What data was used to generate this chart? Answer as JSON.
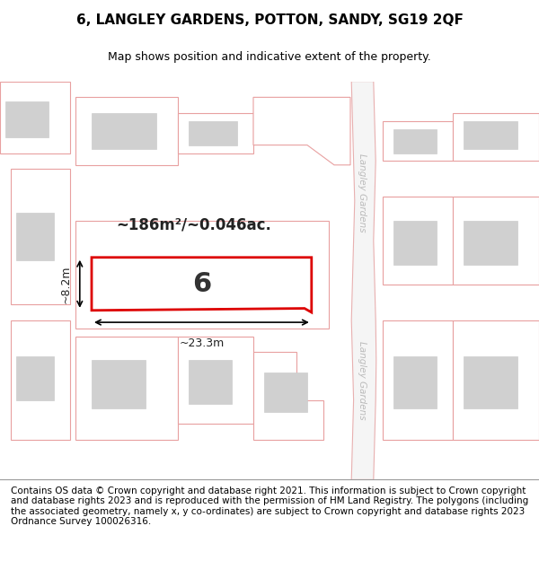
{
  "title": "6, LANGLEY GARDENS, POTTON, SANDY, SG19 2QF",
  "subtitle": "Map shows position and indicative extent of the property.",
  "footer": "Contains OS data © Crown copyright and database right 2021. This information is subject to Crown copyright and database rights 2023 and is reproduced with the permission of HM Land Registry. The polygons (including the associated geometry, namely x, y co-ordinates) are subject to Crown copyright and database rights 2023 Ordnance Survey 100026316.",
  "map_bg": "#f5f5f5",
  "plot_fill": "#ffffff",
  "plot_border": "#e8a0a0",
  "building_fill": "#d0d0d0",
  "building_border": "#cccccc",
  "highlight_border": "#dd0000",
  "highlight_fill": "#ffffff",
  "highlight_label": "6",
  "area_text": "~186m²/~0.046ac.",
  "width_text": "~23.3m",
  "height_text": "~8.2m",
  "street_label_1": "Langley Gardens",
  "street_label_2": "Langley Gardens",
  "title_fontsize": 11,
  "subtitle_fontsize": 9,
  "footer_fontsize": 7.5
}
